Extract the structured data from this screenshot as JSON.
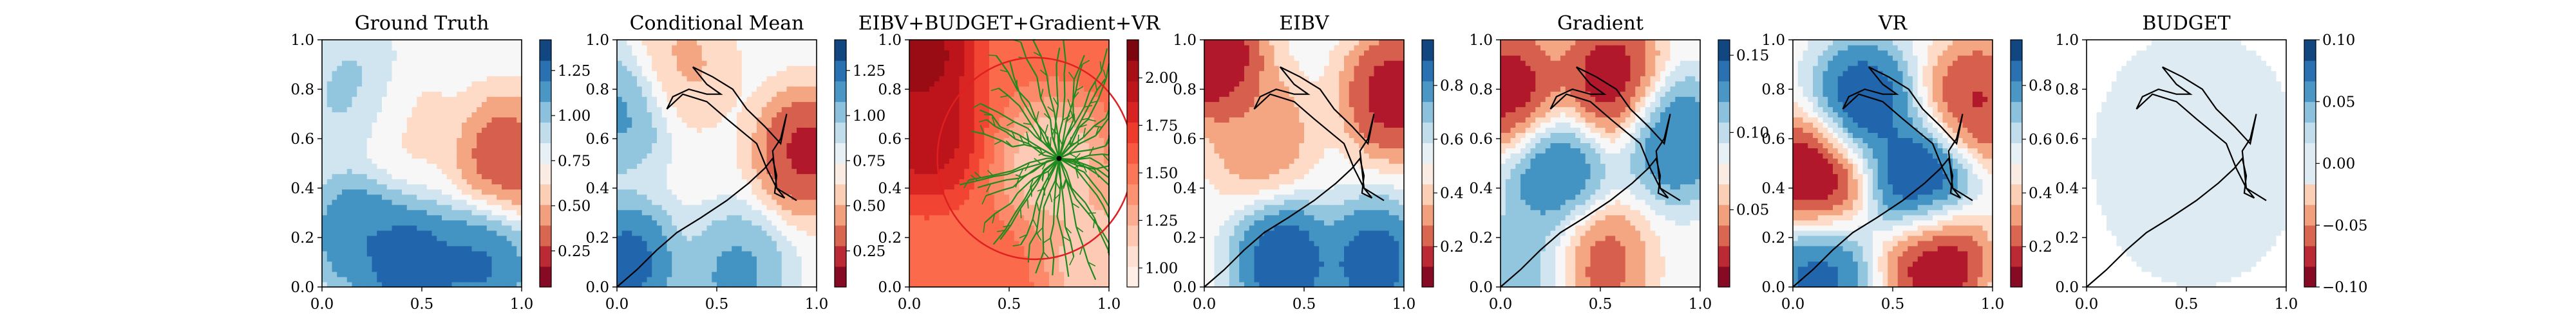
{
  "chart_data": [
    {
      "type": "heatmap",
      "title": "Ground Truth",
      "xlim": [
        0,
        1
      ],
      "ylim": [
        0,
        1
      ],
      "xticks": [
        "0.0",
        "0.5",
        "1.0"
      ],
      "yticks": [
        "0.0",
        "0.2",
        "0.4",
        "0.6",
        "0.8",
        "1.0"
      ],
      "colorbar": {
        "ticks": [
          "0.25",
          "0.50",
          "0.75",
          "1.00",
          "1.25"
        ],
        "tick_values": [
          0.25,
          0.5,
          0.75,
          1.0,
          1.25
        ],
        "range": [
          0.05,
          1.42
        ],
        "cmap": "RdBu"
      },
      "features": [
        {
          "kind": "low",
          "x": 0.92,
          "y": 0.52,
          "value": 0.2
        },
        {
          "kind": "low",
          "x": 0.4,
          "y": 0.68,
          "value": 0.6
        },
        {
          "kind": "high",
          "x": 0.18,
          "y": 0.78,
          "value": 1.05
        },
        {
          "kind": "high",
          "x": 0.18,
          "y": 0.22,
          "value": 1.3
        },
        {
          "kind": "high",
          "x": 0.45,
          "y": 0.08,
          "value": 1.45
        },
        {
          "kind": "high",
          "x": 0.8,
          "y": 0.1,
          "value": 1.35
        }
      ],
      "path": []
    },
    {
      "type": "heatmap",
      "title": "Conditional Mean",
      "xlim": [
        0,
        1
      ],
      "ylim": [
        0,
        1
      ],
      "xticks": [
        "0.0",
        "0.5",
        "1.0"
      ],
      "yticks": [
        "0.0",
        "0.2",
        "0.4",
        "0.6",
        "0.8",
        "1.0"
      ],
      "colorbar": {
        "ticks": [
          "0.25",
          "0.50",
          "0.75",
          "1.00",
          "1.25"
        ],
        "tick_values": [
          0.25,
          0.5,
          0.75,
          1.0,
          1.25
        ],
        "range": [
          0.05,
          1.42
        ],
        "cmap": "RdBu"
      },
      "features": [
        {
          "kind": "low",
          "x": 0.95,
          "y": 0.55,
          "value": 0.1
        },
        {
          "kind": "low",
          "x": 0.32,
          "y": 0.9,
          "value": 0.45
        },
        {
          "kind": "high",
          "x": 0.05,
          "y": 0.1,
          "value": 1.4
        },
        {
          "kind": "high",
          "x": 0.6,
          "y": 0.05,
          "value": 1.2
        },
        {
          "kind": "high",
          "x": 0.02,
          "y": 0.72,
          "value": 1.2
        }
      ],
      "path": [
        [
          0.0,
          0.0
        ],
        [
          0.1,
          0.07
        ],
        [
          0.2,
          0.15
        ],
        [
          0.3,
          0.22
        ],
        [
          0.42,
          0.28
        ],
        [
          0.55,
          0.35
        ],
        [
          0.66,
          0.42
        ],
        [
          0.74,
          0.48
        ],
        [
          0.78,
          0.52
        ],
        [
          0.8,
          0.45
        ],
        [
          0.79,
          0.38
        ],
        [
          0.84,
          0.36
        ],
        [
          0.8,
          0.4
        ],
        [
          0.78,
          0.55
        ],
        [
          0.82,
          0.6
        ],
        [
          0.85,
          0.7
        ],
        [
          0.82,
          0.58
        ],
        [
          0.74,
          0.65
        ],
        [
          0.65,
          0.72
        ],
        [
          0.58,
          0.8
        ],
        [
          0.48,
          0.85
        ],
        [
          0.38,
          0.89
        ],
        [
          0.45,
          0.82
        ],
        [
          0.52,
          0.78
        ],
        [
          0.45,
          0.78
        ],
        [
          0.36,
          0.8
        ],
        [
          0.28,
          0.77
        ],
        [
          0.25,
          0.72
        ],
        [
          0.33,
          0.78
        ],
        [
          0.45,
          0.75
        ],
        [
          0.55,
          0.68
        ],
        [
          0.64,
          0.62
        ],
        [
          0.7,
          0.58
        ],
        [
          0.75,
          0.48
        ],
        [
          0.8,
          0.4
        ],
        [
          0.9,
          0.35
        ]
      ]
    },
    {
      "type": "heatmap",
      "title": "EIBV+BUDGET+Gradient+VR",
      "xlim": [
        0,
        1
      ],
      "ylim": [
        0,
        1
      ],
      "xticks": [
        "0.0",
        "0.5",
        "1.0"
      ],
      "yticks": [
        "0.0",
        "0.2",
        "0.4",
        "0.6",
        "0.8",
        "1.0"
      ],
      "colorbar": {
        "ticks": [
          "1.00",
          "1.25",
          "1.50",
          "1.75",
          "2.00"
        ],
        "tick_values": [
          1.0,
          1.25,
          1.5,
          1.75,
          2.0
        ],
        "range": [
          0.9,
          2.2
        ],
        "cmap": "Reds"
      },
      "features": [
        {
          "kind": "high",
          "x": 0.05,
          "y": 0.95,
          "value": 2.2
        },
        {
          "kind": "high",
          "x": 0.08,
          "y": 0.62,
          "value": 2.05
        },
        {
          "kind": "low",
          "x": 0.72,
          "y": 0.5,
          "value": 1.0
        },
        {
          "kind": "low",
          "x": 0.95,
          "y": 0.1,
          "value": 1.0
        }
      ],
      "tree_root": [
        0.75,
        0.52
      ],
      "budget_circle": {
        "cx": 0.63,
        "cy": 0.52,
        "r": 0.68
      },
      "path": []
    },
    {
      "type": "heatmap",
      "title": "EIBV",
      "xlim": [
        0,
        1
      ],
      "ylim": [
        0,
        1
      ],
      "xticks": [
        "0.0",
        "0.5",
        "1.0"
      ],
      "yticks": [
        "0.0",
        "0.2",
        "0.4",
        "0.6",
        "0.8",
        "1.0"
      ],
      "colorbar": {
        "ticks": [
          "0.2",
          "0.4",
          "0.6",
          "0.8"
        ],
        "tick_values": [
          0.2,
          0.4,
          0.6,
          0.8
        ],
        "range": [
          0.05,
          0.97
        ],
        "cmap": "RdBu"
      },
      "features": [
        {
          "kind": "low",
          "x": 0.05,
          "y": 0.92,
          "value": 0.0
        },
        {
          "kind": "low",
          "x": 0.95,
          "y": 0.78,
          "value": 0.05
        },
        {
          "kind": "low",
          "x": 0.28,
          "y": 0.62,
          "value": 0.25
        },
        {
          "kind": "high",
          "x": 0.4,
          "y": 0.1,
          "value": 1.0
        },
        {
          "kind": "high",
          "x": 0.85,
          "y": 0.1,
          "value": 0.97
        }
      ],
      "path": [
        [
          0.0,
          0.0
        ],
        [
          0.1,
          0.07
        ],
        [
          0.2,
          0.15
        ],
        [
          0.3,
          0.22
        ],
        [
          0.42,
          0.28
        ],
        [
          0.55,
          0.35
        ],
        [
          0.66,
          0.42
        ],
        [
          0.74,
          0.48
        ],
        [
          0.78,
          0.52
        ],
        [
          0.8,
          0.45
        ],
        [
          0.79,
          0.38
        ],
        [
          0.84,
          0.36
        ],
        [
          0.8,
          0.4
        ],
        [
          0.78,
          0.55
        ],
        [
          0.82,
          0.6
        ],
        [
          0.85,
          0.7
        ],
        [
          0.82,
          0.58
        ],
        [
          0.74,
          0.65
        ],
        [
          0.65,
          0.72
        ],
        [
          0.58,
          0.8
        ],
        [
          0.48,
          0.85
        ],
        [
          0.38,
          0.89
        ],
        [
          0.45,
          0.82
        ],
        [
          0.52,
          0.78
        ],
        [
          0.45,
          0.78
        ],
        [
          0.36,
          0.8
        ],
        [
          0.28,
          0.77
        ],
        [
          0.25,
          0.72
        ],
        [
          0.33,
          0.78
        ],
        [
          0.45,
          0.75
        ],
        [
          0.55,
          0.68
        ],
        [
          0.64,
          0.62
        ],
        [
          0.7,
          0.58
        ],
        [
          0.75,
          0.48
        ],
        [
          0.8,
          0.4
        ],
        [
          0.9,
          0.35
        ]
      ]
    },
    {
      "type": "heatmap",
      "title": "Gradient",
      "xlim": [
        0,
        1
      ],
      "ylim": [
        0,
        1
      ],
      "xticks": [
        "0.0",
        "0.5",
        "1.0"
      ],
      "yticks": [
        "0.0",
        "0.2",
        "0.4",
        "0.6",
        "0.8",
        "1.0"
      ],
      "colorbar": {
        "ticks": [
          "0.05",
          "0.10",
          "0.15"
        ],
        "tick_values": [
          0.05,
          0.1,
          0.15
        ],
        "range": [
          0.0,
          0.16
        ],
        "cmap": "RdBu"
      },
      "features": [
        {
          "kind": "low",
          "x": 0.05,
          "y": 0.8,
          "value": 0.0
        },
        {
          "kind": "low",
          "x": 0.55,
          "y": 0.85,
          "value": 0.0
        },
        {
          "kind": "low",
          "x": 0.48,
          "y": 0.1,
          "value": 0.02
        },
        {
          "kind": "high",
          "x": 0.28,
          "y": 0.45,
          "value": 0.15
        },
        {
          "kind": "high",
          "x": 0.88,
          "y": 0.6,
          "value": 0.15
        },
        {
          "kind": "high",
          "x": 0.15,
          "y": 0.1,
          "value": 0.12
        }
      ],
      "path": [
        [
          0.0,
          0.0
        ],
        [
          0.1,
          0.07
        ],
        [
          0.2,
          0.15
        ],
        [
          0.3,
          0.22
        ],
        [
          0.42,
          0.28
        ],
        [
          0.55,
          0.35
        ],
        [
          0.66,
          0.42
        ],
        [
          0.74,
          0.48
        ],
        [
          0.78,
          0.52
        ],
        [
          0.8,
          0.45
        ],
        [
          0.79,
          0.38
        ],
        [
          0.84,
          0.36
        ],
        [
          0.8,
          0.4
        ],
        [
          0.78,
          0.55
        ],
        [
          0.82,
          0.6
        ],
        [
          0.85,
          0.7
        ],
        [
          0.82,
          0.58
        ],
        [
          0.74,
          0.65
        ],
        [
          0.65,
          0.72
        ],
        [
          0.58,
          0.8
        ],
        [
          0.48,
          0.85
        ],
        [
          0.38,
          0.89
        ],
        [
          0.45,
          0.82
        ],
        [
          0.52,
          0.78
        ],
        [
          0.45,
          0.78
        ],
        [
          0.36,
          0.8
        ],
        [
          0.28,
          0.77
        ],
        [
          0.25,
          0.72
        ],
        [
          0.33,
          0.78
        ],
        [
          0.45,
          0.75
        ],
        [
          0.55,
          0.68
        ],
        [
          0.64,
          0.62
        ],
        [
          0.7,
          0.58
        ],
        [
          0.75,
          0.48
        ],
        [
          0.8,
          0.4
        ],
        [
          0.9,
          0.35
        ]
      ]
    },
    {
      "type": "heatmap",
      "title": "VR",
      "xlim": [
        0,
        1
      ],
      "ylim": [
        0,
        1
      ],
      "xticks": [
        "0.0",
        "0.5",
        "1.0"
      ],
      "yticks": [
        "0.0",
        "0.2",
        "0.4",
        "0.6",
        "0.8",
        "1.0"
      ],
      "colorbar": {
        "ticks": [
          "0.2",
          "0.4",
          "0.6",
          "0.8"
        ],
        "tick_values": [
          0.2,
          0.4,
          0.6,
          0.8
        ],
        "range": [
          0.05,
          0.97
        ],
        "cmap": "RdBu"
      },
      "features": [
        {
          "kind": "low",
          "x": 0.1,
          "y": 0.45,
          "value": 0.0
        },
        {
          "kind": "low",
          "x": 0.72,
          "y": 0.12,
          "value": 0.0
        },
        {
          "kind": "low",
          "x": 0.92,
          "y": 0.75,
          "value": 0.1
        },
        {
          "kind": "high",
          "x": 0.35,
          "y": 0.75,
          "value": 1.0
        },
        {
          "kind": "high",
          "x": 0.65,
          "y": 0.42,
          "value": 1.05
        },
        {
          "kind": "high",
          "x": 0.12,
          "y": 0.05,
          "value": 0.95
        }
      ],
      "path": [
        [
          0.0,
          0.0
        ],
        [
          0.1,
          0.07
        ],
        [
          0.2,
          0.15
        ],
        [
          0.3,
          0.22
        ],
        [
          0.42,
          0.28
        ],
        [
          0.55,
          0.35
        ],
        [
          0.66,
          0.42
        ],
        [
          0.74,
          0.48
        ],
        [
          0.78,
          0.52
        ],
        [
          0.8,
          0.45
        ],
        [
          0.79,
          0.38
        ],
        [
          0.84,
          0.36
        ],
        [
          0.8,
          0.4
        ],
        [
          0.78,
          0.55
        ],
        [
          0.82,
          0.6
        ],
        [
          0.85,
          0.7
        ],
        [
          0.82,
          0.58
        ],
        [
          0.74,
          0.65
        ],
        [
          0.65,
          0.72
        ],
        [
          0.58,
          0.8
        ],
        [
          0.48,
          0.85
        ],
        [
          0.38,
          0.89
        ],
        [
          0.45,
          0.82
        ],
        [
          0.52,
          0.78
        ],
        [
          0.45,
          0.78
        ],
        [
          0.36,
          0.8
        ],
        [
          0.28,
          0.77
        ],
        [
          0.25,
          0.72
        ],
        [
          0.33,
          0.78
        ],
        [
          0.45,
          0.75
        ],
        [
          0.55,
          0.68
        ],
        [
          0.64,
          0.62
        ],
        [
          0.7,
          0.58
        ],
        [
          0.75,
          0.48
        ],
        [
          0.8,
          0.4
        ],
        [
          0.9,
          0.35
        ]
      ]
    },
    {
      "type": "heatmap",
      "title": "BUDGET",
      "xlim": [
        0,
        1
      ],
      "ylim": [
        0,
        1
      ],
      "xticks": [
        "0.0",
        "0.5",
        "1.0"
      ],
      "yticks": [
        "0.0",
        "0.2",
        "0.4",
        "0.6",
        "0.8",
        "1.0"
      ],
      "colorbar": {
        "ticks": [
          "−0.10",
          "−0.05",
          "0.00",
          "0.05",
          "0.10"
        ],
        "tick_values": [
          -0.1,
          -0.05,
          0.0,
          0.05,
          0.1
        ],
        "range": [
          -0.1,
          0.1
        ],
        "cmap": "RdBu"
      },
      "budget_region": {
        "cx": 0.55,
        "cy": 0.52,
        "r": 0.66,
        "value": 0.0
      },
      "features": [],
      "path": [
        [
          0.0,
          0.0
        ],
        [
          0.1,
          0.07
        ],
        [
          0.2,
          0.15
        ],
        [
          0.3,
          0.22
        ],
        [
          0.42,
          0.28
        ],
        [
          0.55,
          0.35
        ],
        [
          0.66,
          0.42
        ],
        [
          0.74,
          0.48
        ],
        [
          0.78,
          0.52
        ],
        [
          0.8,
          0.45
        ],
        [
          0.79,
          0.38
        ],
        [
          0.84,
          0.36
        ],
        [
          0.8,
          0.4
        ],
        [
          0.78,
          0.55
        ],
        [
          0.82,
          0.6
        ],
        [
          0.85,
          0.7
        ],
        [
          0.82,
          0.58
        ],
        [
          0.74,
          0.65
        ],
        [
          0.65,
          0.72
        ],
        [
          0.58,
          0.8
        ],
        [
          0.48,
          0.85
        ],
        [
          0.38,
          0.89
        ],
        [
          0.45,
          0.82
        ],
        [
          0.52,
          0.78
        ],
        [
          0.45,
          0.78
        ],
        [
          0.36,
          0.8
        ],
        [
          0.28,
          0.77
        ],
        [
          0.25,
          0.72
        ],
        [
          0.33,
          0.78
        ],
        [
          0.45,
          0.75
        ],
        [
          0.55,
          0.68
        ],
        [
          0.64,
          0.62
        ],
        [
          0.7,
          0.58
        ],
        [
          0.75,
          0.48
        ],
        [
          0.8,
          0.4
        ],
        [
          0.9,
          0.35
        ]
      ]
    }
  ]
}
